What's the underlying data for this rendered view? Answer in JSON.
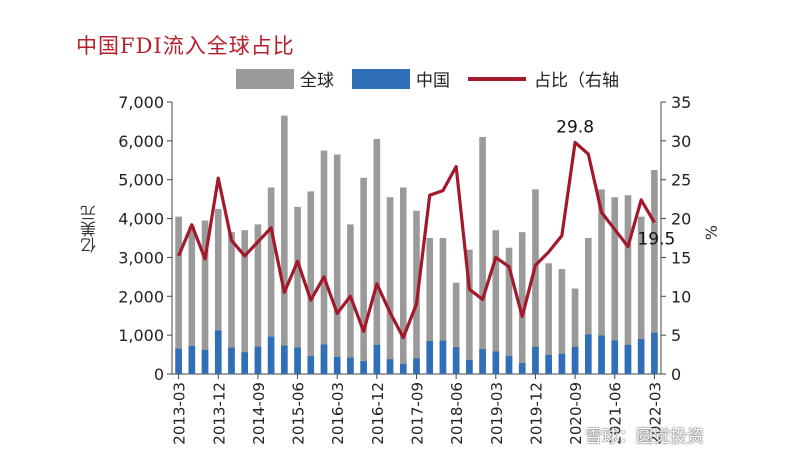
{
  "chart_data": {
    "type": "bar",
    "title": "中国FDI流入全球占比",
    "ylabel": "亿美元",
    "y2label": "%",
    "ylim": [
      0,
      7000
    ],
    "y2lim": [
      0,
      35
    ],
    "yticks": [
      "0",
      "1,000",
      "2,000",
      "3,000",
      "4,000",
      "5,000",
      "6,000",
      "7,000"
    ],
    "y2ticks": [
      "0",
      "5",
      "10",
      "15",
      "20",
      "25",
      "30",
      "35"
    ],
    "x_tick_labels": [
      "2013-03",
      "2013-12",
      "2014-09",
      "2015-06",
      "2016-03",
      "2016-12",
      "2017-09",
      "2018-06",
      "2019-03",
      "2019-12",
      "2020-09",
      "2021-06",
      "2022-03"
    ],
    "legend_position": "top",
    "series": [
      {
        "name": "全球",
        "kind": "bar",
        "color": "#9a9a9a",
        "values": [
          4050,
          3800,
          3950,
          4250,
          3650,
          3700,
          3850,
          4800,
          6650,
          4300,
          4700,
          5750,
          5650,
          3850,
          5050,
          6050,
          4550,
          4800,
          4200,
          3500,
          3500,
          2350,
          3200,
          6100,
          3700,
          3250,
          3650,
          4750,
          2850,
          2700,
          2200,
          3500,
          4750,
          4550,
          4600,
          4050,
          5250
        ]
      },
      {
        "name": "中国",
        "kind": "bar",
        "color": "#2f6fb8",
        "values": [
          650,
          720,
          620,
          1120,
          680,
          560,
          700,
          960,
          730,
          680,
          460,
          760,
          440,
          420,
          330,
          750,
          380,
          260,
          400,
          850,
          860,
          690,
          360,
          640,
          580,
          460,
          280,
          700,
          490,
          520,
          700,
          1020,
          990,
          860,
          750,
          900,
          1060
        ]
      },
      {
        "name": "占比（右轴",
        "kind": "line",
        "axis": "right",
        "color": "#a3192b",
        "values": [
          15.2,
          19.2,
          14.8,
          25.2,
          17.2,
          15.2,
          17.0,
          18.8,
          10.5,
          14.5,
          9.5,
          12.5,
          7.8,
          10.0,
          5.5,
          11.6,
          7.9,
          4.7,
          9.0,
          23.0,
          23.6,
          26.7,
          10.9,
          9.6,
          15.0,
          13.8,
          7.4,
          14.0,
          15.7,
          17.8,
          29.8,
          28.3,
          20.8,
          18.6,
          16.4,
          22.4,
          19.5
        ]
      }
    ],
    "annotations": [
      {
        "text": "29.8",
        "index": 30
      },
      {
        "text": "19.5",
        "index": 36
      }
    ]
  },
  "watermark": "雪球：圆觉投资"
}
